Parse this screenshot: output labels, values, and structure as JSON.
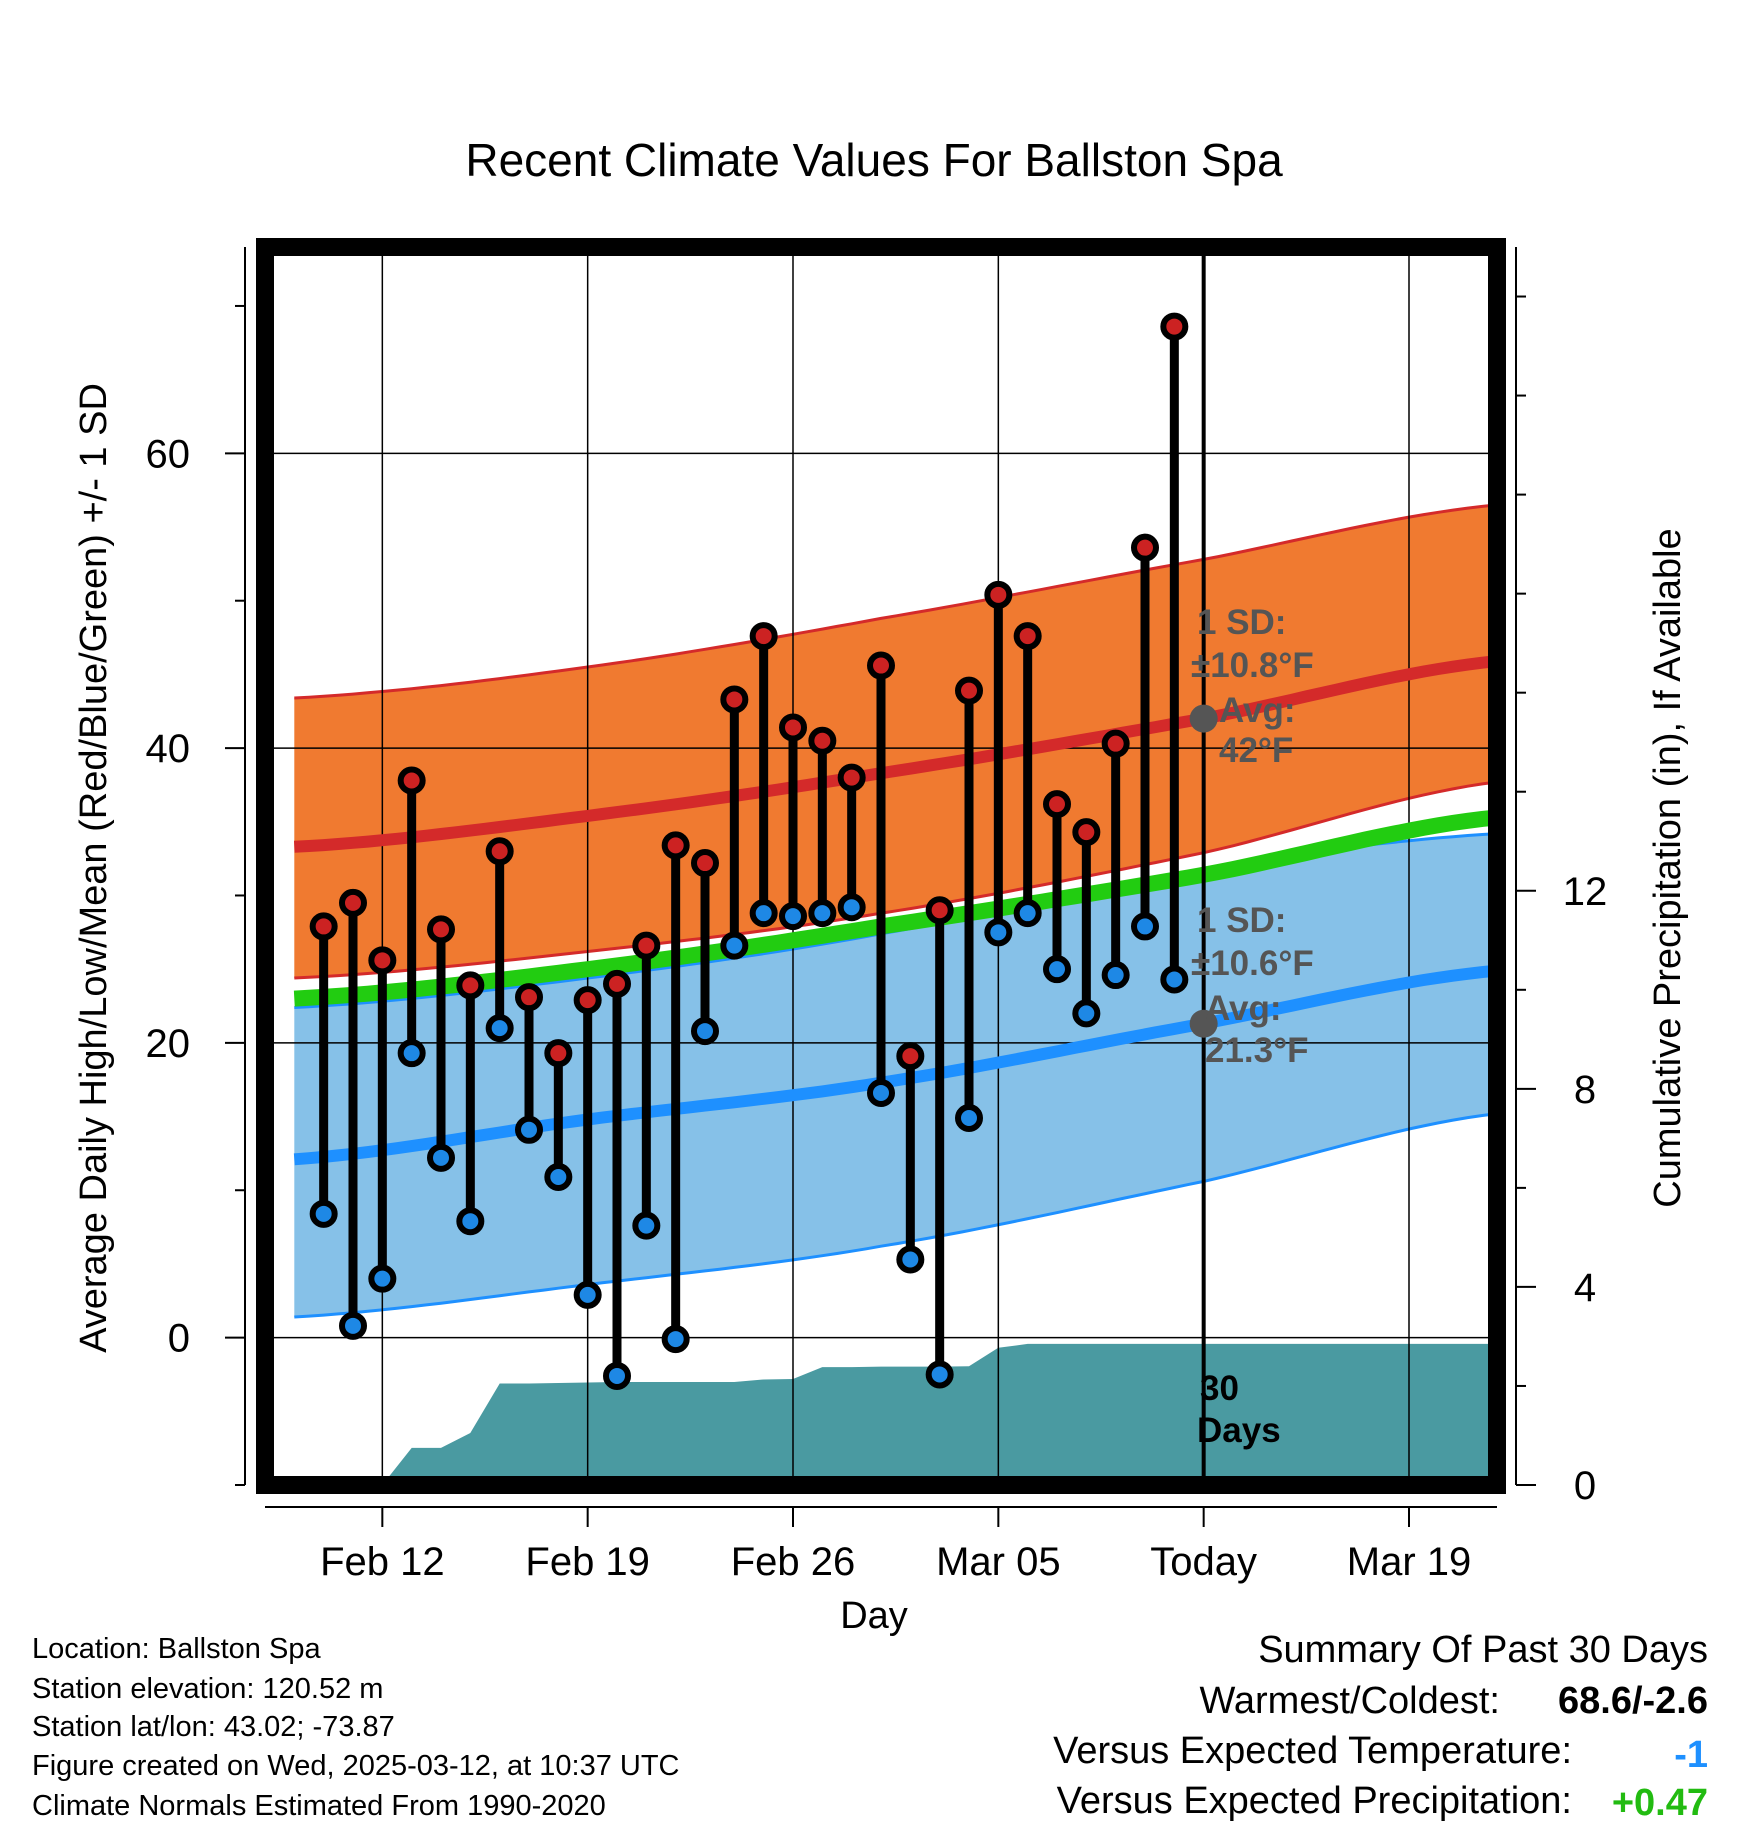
{
  "chart_data": {
    "type": "line",
    "title": "Recent Climate Values For Ballston Spa",
    "xlabel": "Day",
    "ylabel": "Average Daily High/Low/Mean (Red/Blue/Green) +/- 1 SD",
    "y2label": "Cumulative Precipitation (in), If Available",
    "xticks": [
      "Feb 12",
      "Feb 19",
      "Feb 26",
      "Mar 05",
      "Today",
      "Mar 19"
    ],
    "xtick_dates": [
      "2025-02-12",
      "2025-02-19",
      "2025-02-26",
      "2025-03-05",
      "2025-03-12",
      "2025-03-19"
    ],
    "today": "2025-03-12",
    "xlim": [
      "2025-02-08",
      "2025-03-22"
    ],
    "yticks": [
      0,
      20,
      40,
      60
    ],
    "ylim": [
      -10,
      74
    ],
    "y2ticks": [
      0,
      4,
      8,
      12
    ],
    "y2lim": [
      0,
      25
    ],
    "grid": true,
    "daily_dates": [
      "2025-02-10",
      "2025-02-11",
      "2025-02-12",
      "2025-02-13",
      "2025-02-14",
      "2025-02-15",
      "2025-02-16",
      "2025-02-17",
      "2025-02-18",
      "2025-02-19",
      "2025-02-20",
      "2025-02-21",
      "2025-02-22",
      "2025-02-23",
      "2025-02-24",
      "2025-02-25",
      "2025-02-26",
      "2025-02-27",
      "2025-02-28",
      "2025-03-01",
      "2025-03-02",
      "2025-03-03",
      "2025-03-04",
      "2025-03-05",
      "2025-03-06",
      "2025-03-07",
      "2025-03-08",
      "2025-03-09",
      "2025-03-10",
      "2025-03-11"
    ],
    "series": [
      {
        "name": "High",
        "values": [
          27.9,
          29.5,
          25.6,
          37.8,
          27.7,
          23.9,
          33.0,
          23.1,
          19.3,
          22.9,
          24.0,
          26.6,
          33.4,
          32.2,
          43.3,
          47.6,
          41.4,
          40.5,
          38.0,
          45.6,
          19.1,
          29.0,
          43.9,
          50.4,
          47.6,
          36.2,
          34.3,
          40.3,
          53.6,
          68.6
        ]
      },
      {
        "name": "Low",
        "values": [
          8.4,
          0.8,
          4.0,
          19.3,
          12.2,
          7.9,
          21.0,
          14.1,
          10.9,
          2.9,
          -2.6,
          7.6,
          -0.1,
          20.8,
          26.6,
          28.8,
          28.6,
          28.8,
          29.2,
          16.6,
          5.3,
          -2.5,
          14.9,
          27.5,
          28.8,
          25.0,
          22.0,
          24.6,
          27.9,
          24.3
        ]
      }
    ],
    "normals": {
      "dates": [
        "2025-02-09",
        "2025-02-19",
        "2025-02-29",
        "2025-03-12",
        "2025-03-22"
      ],
      "high_avg": [
        33.3,
        35.4,
        38.3,
        42.0,
        45.9
      ],
      "high_upper": [
        43.4,
        45.5,
        48.8,
        52.8,
        56.5
      ],
      "high_lower": [
        24.4,
        26.2,
        28.8,
        32.9,
        37.7
      ],
      "mean": [
        23.0,
        25.0,
        27.9,
        31.4,
        35.3
      ],
      "low_avg": [
        12.1,
        14.8,
        17.3,
        21.3,
        24.9
      ],
      "low_upper": [
        22.4,
        24.4,
        27.4,
        31.8,
        34.2
      ],
      "low_lower": [
        1.4,
        3.6,
        6.2,
        10.6,
        15.2
      ]
    },
    "precip_cumulative": {
      "dates": [
        "2025-02-12",
        "2025-02-13",
        "2025-02-14",
        "2025-02-15",
        "2025-02-16",
        "2025-02-17",
        "2025-02-18",
        "2025-02-19",
        "2025-02-20",
        "2025-02-21",
        "2025-02-22",
        "2025-02-23",
        "2025-02-24",
        "2025-02-25",
        "2025-02-26",
        "2025-02-27",
        "2025-02-28",
        "2025-03-01",
        "2025-03-02",
        "2025-03-03",
        "2025-03-04",
        "2025-03-05",
        "2025-03-06",
        "2025-03-07",
        "2025-03-22"
      ],
      "values": [
        0.0,
        0.75,
        0.75,
        1.05,
        2.05,
        2.05,
        2.06,
        2.07,
        2.08,
        2.08,
        2.08,
        2.08,
        2.08,
        2.13,
        2.14,
        2.38,
        2.38,
        2.39,
        2.39,
        2.39,
        2.4,
        2.77,
        2.85,
        2.85,
        2.85
      ]
    },
    "annotations": {
      "high_sd_label": "1 SD:",
      "high_sd_value": "±10.8°F",
      "high_avg_label": "Avg:",
      "high_avg_value": "42°F",
      "low_sd_label": "1 SD:",
      "low_sd_value": "±10.6°F",
      "low_avg_label": "Avg:",
      "low_avg_value": "21.3°F",
      "days_number": "30",
      "days_word": "Days"
    },
    "colors": {
      "high_band": "#f07a30",
      "high_line": "#d42a2a",
      "low_band": "#86c1e8",
      "low_line": "#1e90ff",
      "mean_line": "#22cc11",
      "precip": "#4a9aa1",
      "high_dot": "#cc2222",
      "low_dot": "#1e88e5",
      "avg_marker": "#555555"
    }
  },
  "footer": {
    "location": "Location: Ballston Spa",
    "elevation": "Station elevation: 120.52 m",
    "latlon": "Station lat/lon: 43.02; -73.87",
    "created": "Figure created on Wed, 2025-03-12, at 10:37 UTC",
    "normals": "Climate Normals Estimated From 1990-2020"
  },
  "summary": {
    "heading": "Summary Of Past 30 Days",
    "warm_cold_label": "Warmest/Coldest:",
    "warm_cold_value": "68.6/-2.6",
    "temp_label": "Versus Expected Temperature:",
    "temp_value": "-1",
    "temp_color": "#1e90ff",
    "precip_label": "Versus Expected Precipitation:",
    "precip_value": "+0.47",
    "precip_color": "#22bb11"
  }
}
